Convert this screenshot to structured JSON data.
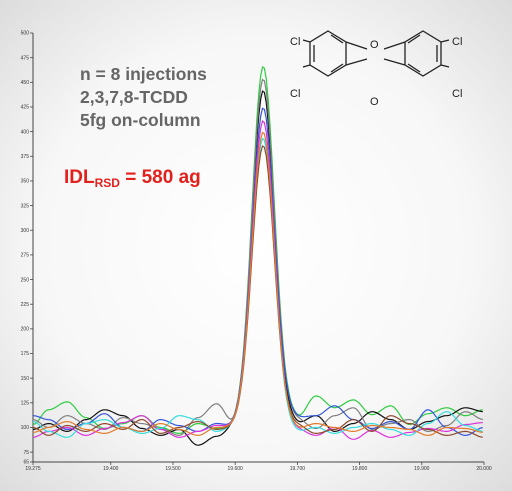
{
  "annotations": {
    "line1": "n = 8 injections",
    "line2": "2,3,7,8-TCDD",
    "line3": "5fg on-column",
    "idl_main": "IDL",
    "idl_sub": "RSD",
    "idl_value": " = 580 ag"
  },
  "structure": {
    "labels": [
      "Cl",
      "O",
      "Cl",
      "Cl",
      "O",
      "Cl"
    ],
    "icon": "tcdd-structure-icon"
  },
  "chart_data": {
    "type": "line",
    "title": "",
    "xlabel": "",
    "ylabel": "",
    "xlim": [
      19.275,
      20.0
    ],
    "ylim": [
      65,
      500
    ],
    "grid": false,
    "x_ticks": [
      "19.275",
      "19.400",
      "19.500",
      "19.600",
      "19.700",
      "19.800",
      "19.900",
      "20.000"
    ],
    "y_ticks": [
      "65",
      "75",
      "100",
      "125",
      "150",
      "175",
      "200",
      "225",
      "250",
      "275",
      "300",
      "325",
      "350",
      "375",
      "400",
      "425",
      "450",
      "475",
      "500"
    ],
    "peak_center": 19.645,
    "series": [
      {
        "color": "#2ecc40",
        "peak": 462,
        "x": [
          19.275,
          19.3,
          19.33,
          19.36,
          19.39,
          19.42,
          19.45,
          19.48,
          19.51,
          19.54,
          19.57,
          19.6,
          19.7,
          19.73,
          19.76,
          19.79,
          19.82,
          19.85,
          19.88,
          19.91,
          19.94,
          19.97,
          20.0
        ],
        "y": [
          103,
          118,
          126,
          110,
          99,
          104,
          112,
          100,
          94,
          104,
          99,
          100,
          110,
          132,
          120,
          128,
          113,
          122,
          103,
          114,
          120,
          112,
          118
        ]
      },
      {
        "color": "#111111",
        "peak": 440,
        "x": [
          19.275,
          19.3,
          19.33,
          19.36,
          19.39,
          19.42,
          19.45,
          19.48,
          19.51,
          19.54,
          19.57,
          19.6,
          19.7,
          19.73,
          19.76,
          19.79,
          19.82,
          19.85,
          19.88,
          19.91,
          19.94,
          19.97,
          20.0
        ],
        "y": [
          98,
          104,
          96,
          108,
          118,
          112,
          99,
          92,
          98,
          82,
          91,
          100,
          104,
          112,
          96,
          104,
          116,
          108,
          98,
          106,
          112,
          120,
          116
        ]
      },
      {
        "color": "#7f7f7f",
        "peak": 450,
        "x": [
          19.275,
          19.3,
          19.33,
          19.36,
          19.39,
          19.42,
          19.45,
          19.48,
          19.51,
          19.54,
          19.57,
          19.6,
          19.7,
          19.73,
          19.76,
          19.79,
          19.82,
          19.85,
          19.88,
          19.91,
          19.94,
          19.97,
          20.0
        ],
        "y": [
          108,
          100,
          112,
          104,
          98,
          110,
          104,
          99,
          92,
          110,
          124,
          100,
          108,
          99,
          112,
          120,
          98,
          104,
          108,
          96,
          102,
          116,
          108
        ]
      },
      {
        "color": "#3355dd",
        "peak": 420,
        "x": [
          19.275,
          19.3,
          19.33,
          19.36,
          19.39,
          19.42,
          19.45,
          19.48,
          19.51,
          19.54,
          19.57,
          19.6,
          19.7,
          19.73,
          19.76,
          19.79,
          19.82,
          19.85,
          19.88,
          19.91,
          19.94,
          19.97,
          20.0
        ],
        "y": [
          112,
          108,
          98,
          104,
          114,
          100,
          96,
          108,
          102,
          96,
          104,
          100,
          110,
          112,
          122,
          108,
          99,
          106,
          98,
          118,
          100,
          92,
          100
        ]
      },
      {
        "color": "#dd33dd",
        "peak": 412,
        "x": [
          19.275,
          19.3,
          19.33,
          19.36,
          19.39,
          19.42,
          19.45,
          19.48,
          19.51,
          19.54,
          19.57,
          19.6,
          19.7,
          19.73,
          19.76,
          19.79,
          19.82,
          19.85,
          19.88,
          19.91,
          19.94,
          19.97,
          20.0
        ],
        "y": [
          90,
          96,
          100,
          92,
          99,
          105,
          112,
          98,
          90,
          96,
          102,
          100,
          98,
          92,
          100,
          88,
          97,
          90,
          95,
          99,
          96,
          103,
          105
        ]
      },
      {
        "color": "#33dddd",
        "peak": 395,
        "x": [
          19.275,
          19.3,
          19.33,
          19.36,
          19.39,
          19.42,
          19.45,
          19.48,
          19.51,
          19.54,
          19.57,
          19.6,
          19.7,
          19.73,
          19.76,
          19.79,
          19.82,
          19.85,
          19.88,
          19.91,
          19.94,
          19.97,
          20.0
        ],
        "y": [
          106,
          96,
          90,
          104,
          108,
          100,
          94,
          99,
          112,
          108,
          96,
          100,
          96,
          100,
          94,
          100,
          104,
          98,
          92,
          104,
          116,
          102,
          96
        ]
      },
      {
        "color": "#8e4b2b",
        "peak": 385,
        "x": [
          19.275,
          19.3,
          19.33,
          19.36,
          19.39,
          19.42,
          19.45,
          19.48,
          19.51,
          19.54,
          19.57,
          19.6,
          19.7,
          19.73,
          19.76,
          19.79,
          19.82,
          19.85,
          19.88,
          19.91,
          19.94,
          19.97,
          20.0
        ],
        "y": [
          100,
          92,
          102,
          96,
          104,
          98,
          108,
          94,
          100,
          106,
          98,
          100,
          102,
          94,
          98,
          108,
          96,
          112,
          104,
          98,
          92,
          96,
          90
        ]
      },
      {
        "color": "#e37b2b",
        "peak": 400,
        "x": [
          19.275,
          19.3,
          19.33,
          19.36,
          19.39,
          19.42,
          19.45,
          19.48,
          19.51,
          19.54,
          19.57,
          19.6,
          19.7,
          19.73,
          19.76,
          19.79,
          19.82,
          19.85,
          19.88,
          19.91,
          19.94,
          19.97,
          20.0
        ],
        "y": [
          95,
          100,
          106,
          98,
          94,
          100,
          96,
          104,
          98,
          92,
          100,
          100,
          99,
          104,
          100,
          96,
          102,
          100,
          98,
          92,
          100,
          99,
          95
        ]
      }
    ]
  }
}
